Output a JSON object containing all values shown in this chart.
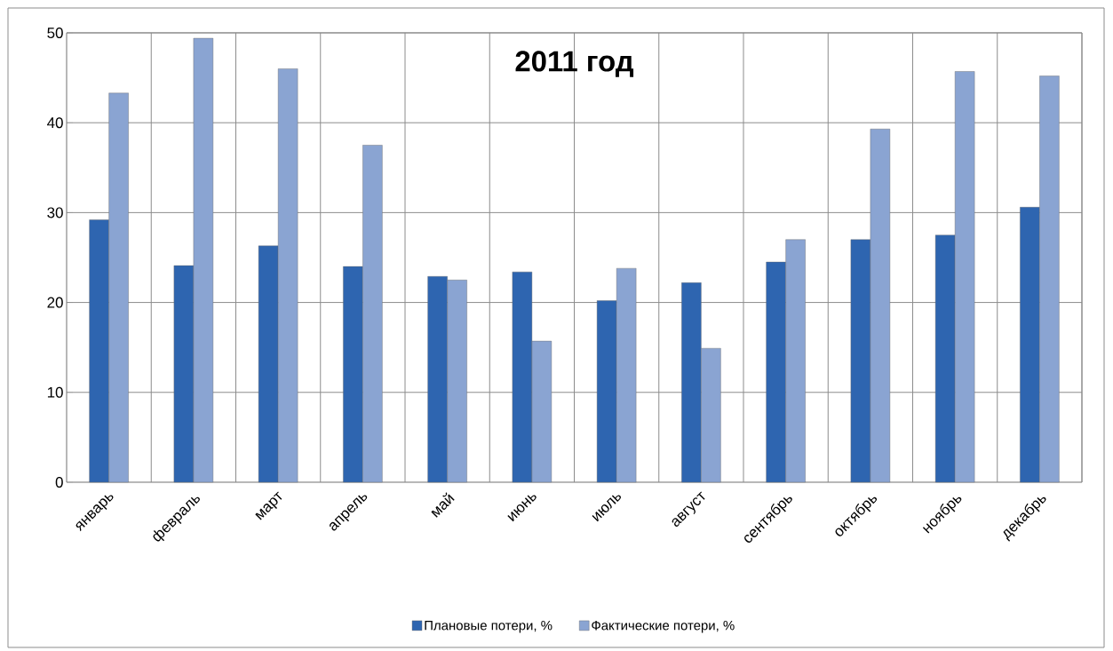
{
  "chart_data": {
    "type": "bar",
    "title": "2011 год",
    "categories": [
      "январь",
      "февраль",
      "март",
      "апрель",
      "май",
      "июнь",
      "июль",
      "август",
      "сентябрь",
      "октябрь",
      "ноябрь",
      "декабрь"
    ],
    "series": [
      {
        "name": "Плановые потери, %",
        "color": "#2e65b0",
        "values": [
          29.2,
          24.1,
          26.3,
          24.0,
          22.9,
          23.4,
          20.2,
          22.2,
          24.5,
          27.0,
          27.5,
          30.6
        ]
      },
      {
        "name": "Фактические потери, %",
        "color": "#8aa4d2",
        "values": [
          43.3,
          49.4,
          46.0,
          37.5,
          22.5,
          15.7,
          23.8,
          14.9,
          27.0,
          39.3,
          45.7,
          45.2
        ]
      }
    ],
    "ylim": [
      0,
      50
    ],
    "yticks": [
      0,
      10,
      20,
      30,
      40,
      50
    ],
    "grid": true,
    "legend": "bottom"
  }
}
